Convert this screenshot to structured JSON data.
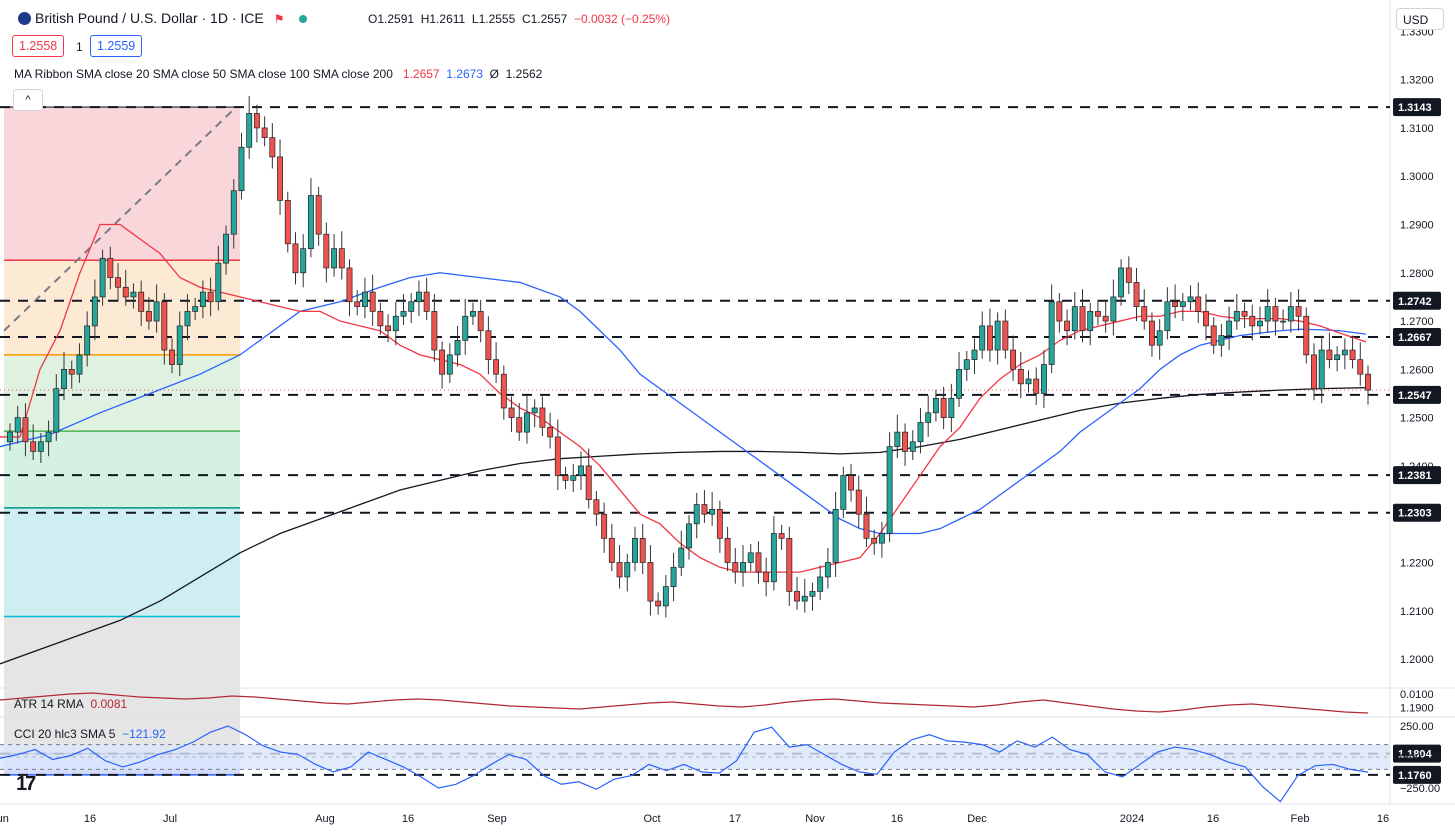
{
  "header": {
    "title": "British Pound / U.S. Dollar · 1D · ICE",
    "open_label": "O",
    "open": "1.2591",
    "high_label": "H",
    "high": "1.2611",
    "low_label": "L",
    "low": "1.2555",
    "close_label": "C",
    "close": "1.2557",
    "change": "−0.0032 (−0.25%)",
    "bid": "1.2558",
    "quantity": "1",
    "ask": "1.2559",
    "currency": "USD",
    "collapse_glyph": "^"
  },
  "ma_ribbon": {
    "label": "MA Ribbon SMA close 20 SMA close 50 SMA close 100 SMA close 200",
    "v1": "1.2657",
    "v2": "1.2673",
    "v3": "Ø",
    "v4": "1.2562"
  },
  "atr": {
    "label": "ATR 14 RMA",
    "value": "0.0081"
  },
  "cci": {
    "label": "CCI 20 hlc3 SMA 5",
    "value": "−121.92"
  },
  "logo_text": "17",
  "colors": {
    "up": "#26a69a",
    "down": "#ef5350",
    "sma20": "#f23645",
    "sma50": "#2962ff",
    "sma200": "#131722",
    "atr": "#b22833",
    "cci": "#2962ff"
  },
  "chart_data": {
    "type": "candlestick",
    "ylim": [
      1.194,
      1.3365
    ],
    "price_ticks": [
      "1.3300",
      "1.3200",
      "1.3100",
      "1.3000",
      "1.2900",
      "1.2800",
      "1.2700",
      "1.2600",
      "1.2500",
      "1.2400",
      "1.2300",
      "1.2200",
      "1.2100",
      "1.2000",
      "1.1900"
    ],
    "x_ticks": [
      "Jun",
      "16",
      "Jul",
      "Aug",
      "16",
      "Sep",
      "Oct",
      "17",
      "Nov",
      "16",
      "Dec",
      "2024",
      "16",
      "Feb",
      "16"
    ],
    "levels": [
      {
        "label": "1.3143",
        "value": 1.3143
      },
      {
        "label": "1.2742",
        "value": 1.2742
      },
      {
        "label": "1.2667",
        "value": 1.2667
      },
      {
        "label": "1.2547",
        "value": 1.2547
      },
      {
        "label": "1.2381",
        "value": 1.2381
      },
      {
        "label": "1.2303",
        "value": 1.2303
      },
      {
        "label": "1.1804",
        "value": 1.1804
      },
      {
        "label": "1.1760",
        "value": 1.176
      }
    ],
    "last_close": 1.2557,
    "fib_levels": [
      1.3143,
      1.2826,
      1.263,
      1.2472,
      1.2313,
      1.2088,
      1.1804
    ],
    "fib_low": 1.176,
    "closes": [
      1.247,
      1.25,
      1.245,
      1.243,
      1.245,
      1.247,
      1.256,
      1.26,
      1.259,
      1.263,
      1.269,
      1.275,
      1.283,
      1.279,
      1.277,
      1.275,
      1.276,
      1.272,
      1.27,
      1.274,
      1.264,
      1.261,
      1.269,
      1.272,
      1.273,
      1.276,
      1.274,
      1.282,
      1.288,
      1.297,
      1.306,
      1.313,
      1.31,
      1.308,
      1.304,
      1.295,
      1.286,
      1.28,
      1.285,
      1.296,
      1.288,
      1.281,
      1.285,
      1.281,
      1.274,
      1.273,
      1.276,
      1.272,
      1.269,
      1.268,
      1.271,
      1.272,
      1.274,
      1.276,
      1.272,
      1.264,
      1.259,
      1.263,
      1.266,
      1.271,
      1.272,
      1.268,
      1.262,
      1.259,
      1.252,
      1.25,
      1.247,
      1.251,
      1.252,
      1.248,
      1.246,
      1.238,
      1.237,
      1.238,
      1.24,
      1.233,
      1.23,
      1.225,
      1.22,
      1.217,
      1.22,
      1.225,
      1.22,
      1.212,
      1.211,
      1.215,
      1.219,
      1.223,
      1.228,
      1.232,
      1.23,
      1.231,
      1.225,
      1.22,
      1.218,
      1.22,
      1.222,
      1.218,
      1.216,
      1.226,
      1.225,
      1.214,
      1.212,
      1.213,
      1.214,
      1.217,
      1.22,
      1.231,
      1.238,
      1.235,
      1.23,
      1.225,
      1.224,
      1.226,
      1.244,
      1.247,
      1.243,
      1.245,
      1.249,
      1.251,
      1.254,
      1.25,
      1.254,
      1.26,
      1.262,
      1.264,
      1.269,
      1.264,
      1.27,
      1.264,
      1.26,
      1.257,
      1.258,
      1.255,
      1.261,
      1.274,
      1.27,
      1.268,
      1.273,
      1.268,
      1.272,
      1.271,
      1.27,
      1.275,
      1.281,
      1.278,
      1.273,
      1.27,
      1.265,
      1.268,
      1.274,
      1.273,
      1.274,
      1.275,
      1.272,
      1.269,
      1.265,
      1.267,
      1.27,
      1.272,
      1.271,
      1.269,
      1.27,
      1.273,
      1.27,
      1.27,
      1.273,
      1.271,
      1.263,
      1.256,
      1.264,
      1.262,
      1.263,
      1.264,
      1.262,
      1.259,
      1.2557
    ],
    "sma20": [
      [
        0,
        1.246
      ],
      [
        20,
        1.246
      ],
      [
        40,
        1.26
      ],
      [
        60,
        1.268
      ],
      [
        80,
        1.28
      ],
      [
        100,
        1.29
      ],
      [
        120,
        1.29
      ],
      [
        140,
        1.287
      ],
      [
        160,
        1.284
      ],
      [
        180,
        1.279
      ],
      [
        200,
        1.277
      ],
      [
        220,
        1.276
      ],
      [
        240,
        1.275
      ],
      [
        260,
        1.274
      ],
      [
        280,
        1.273
      ],
      [
        300,
        1.272
      ],
      [
        320,
        1.272
      ],
      [
        340,
        1.27
      ],
      [
        360,
        1.269
      ],
      [
        380,
        1.268
      ],
      [
        400,
        1.265
      ],
      [
        420,
        1.263
      ],
      [
        440,
        1.262
      ],
      [
        460,
        1.261
      ],
      [
        480,
        1.259
      ],
      [
        500,
        1.255
      ],
      [
        520,
        1.252
      ],
      [
        540,
        1.25
      ],
      [
        560,
        1.247
      ],
      [
        580,
        1.244
      ],
      [
        600,
        1.24
      ],
      [
        620,
        1.235
      ],
      [
        640,
        1.23
      ],
      [
        660,
        1.228
      ],
      [
        680,
        1.224
      ],
      [
        700,
        1.221
      ],
      [
        720,
        1.219
      ],
      [
        740,
        1.218
      ],
      [
        760,
        1.218
      ],
      [
        780,
        1.218
      ],
      [
        800,
        1.218
      ],
      [
        820,
        1.219
      ],
      [
        840,
        1.22
      ],
      [
        860,
        1.221
      ],
      [
        880,
        1.226
      ],
      [
        900,
        1.232
      ],
      [
        920,
        1.238
      ],
      [
        940,
        1.244
      ],
      [
        960,
        1.248
      ],
      [
        980,
        1.254
      ],
      [
        1000,
        1.258
      ],
      [
        1020,
        1.261
      ],
      [
        1040,
        1.263
      ],
      [
        1060,
        1.266
      ],
      [
        1080,
        1.268
      ],
      [
        1100,
        1.269
      ],
      [
        1120,
        1.27
      ],
      [
        1140,
        1.271
      ],
      [
        1160,
        1.271
      ],
      [
        1180,
        1.272
      ],
      [
        1200,
        1.272
      ],
      [
        1220,
        1.271
      ],
      [
        1240,
        1.2705
      ],
      [
        1260,
        1.2705
      ],
      [
        1280,
        1.2705
      ],
      [
        1300,
        1.27
      ],
      [
        1320,
        1.269
      ],
      [
        1340,
        1.2675
      ],
      [
        1366,
        1.2657
      ]
    ],
    "sma50": [
      [
        0,
        1.244
      ],
      [
        50,
        1.2465
      ],
      [
        100,
        1.251
      ],
      [
        150,
        1.255
      ],
      [
        200,
        1.259
      ],
      [
        240,
        1.263
      ],
      [
        260,
        1.266
      ],
      [
        300,
        1.272
      ],
      [
        340,
        1.274
      ],
      [
        380,
        1.277
      ],
      [
        410,
        1.279
      ],
      [
        440,
        1.28
      ],
      [
        480,
        1.279
      ],
      [
        520,
        1.278
      ],
      [
        560,
        1.275
      ],
      [
        580,
        1.272
      ],
      [
        600,
        1.268
      ],
      [
        620,
        1.264
      ],
      [
        640,
        1.259
      ],
      [
        660,
        1.256
      ],
      [
        680,
        1.253
      ],
      [
        700,
        1.25
      ],
      [
        720,
        1.247
      ],
      [
        740,
        1.244
      ],
      [
        760,
        1.241
      ],
      [
        780,
        1.238
      ],
      [
        800,
        1.235
      ],
      [
        820,
        1.232
      ],
      [
        840,
        1.229
      ],
      [
        860,
        1.227
      ],
      [
        880,
        1.226
      ],
      [
        900,
        1.226
      ],
      [
        920,
        1.226
      ],
      [
        940,
        1.227
      ],
      [
        960,
        1.229
      ],
      [
        980,
        1.231
      ],
      [
        1000,
        1.234
      ],
      [
        1020,
        1.237
      ],
      [
        1040,
        1.24
      ],
      [
        1060,
        1.243
      ],
      [
        1080,
        1.247
      ],
      [
        1100,
        1.25
      ],
      [
        1120,
        1.253
      ],
      [
        1140,
        1.256
      ],
      [
        1160,
        1.26
      ],
      [
        1180,
        1.263
      ],
      [
        1200,
        1.265
      ],
      [
        1220,
        1.266
      ],
      [
        1240,
        1.267
      ],
      [
        1260,
        1.2675
      ],
      [
        1280,
        1.268
      ],
      [
        1300,
        1.2683
      ],
      [
        1320,
        1.2682
      ],
      [
        1340,
        1.268
      ],
      [
        1366,
        1.2673
      ]
    ],
    "sma200": [
      [
        0,
        1.199
      ],
      [
        40,
        1.202
      ],
      [
        80,
        1.205
      ],
      [
        120,
        1.208
      ],
      [
        160,
        1.212
      ],
      [
        200,
        1.217
      ],
      [
        240,
        1.222
      ],
      [
        280,
        1.226
      ],
      [
        320,
        1.229
      ],
      [
        360,
        1.232
      ],
      [
        400,
        1.235
      ],
      [
        440,
        1.237
      ],
      [
        480,
        1.239
      ],
      [
        520,
        1.2405
      ],
      [
        560,
        1.2415
      ],
      [
        600,
        1.242
      ],
      [
        640,
        1.2425
      ],
      [
        680,
        1.2428
      ],
      [
        720,
        1.243
      ],
      [
        760,
        1.243
      ],
      [
        800,
        1.2428
      ],
      [
        840,
        1.2425
      ],
      [
        880,
        1.2428
      ],
      [
        920,
        1.244
      ],
      [
        960,
        1.2455
      ],
      [
        1000,
        1.2475
      ],
      [
        1040,
        1.2495
      ],
      [
        1080,
        1.2515
      ],
      [
        1120,
        1.253
      ],
      [
        1160,
        1.254
      ],
      [
        1200,
        1.2548
      ],
      [
        1240,
        1.2553
      ],
      [
        1280,
        1.2557
      ],
      [
        1320,
        1.256
      ],
      [
        1366,
        1.2562
      ]
    ],
    "atr_ticks": [
      "0.0100"
    ],
    "atr_series": [
      0.0094,
      0.0096,
      0.0098,
      0.01,
      0.0101,
      0.0099,
      0.0097,
      0.0096,
      0.0095,
      0.0096,
      0.0098,
      0.0097,
      0.0095,
      0.0093,
      0.0091,
      0.009,
      0.0092,
      0.0094,
      0.0095,
      0.0094,
      0.0092,
      0.009,
      0.0088,
      0.0087,
      0.0086,
      0.0085,
      0.0087,
      0.0089,
      0.0091,
      0.0092,
      0.009,
      0.0088,
      0.0087,
      0.0089,
      0.0092,
      0.0094,
      0.0095,
      0.0093,
      0.0091,
      0.009,
      0.0089,
      0.0088,
      0.0087,
      0.0089,
      0.0092,
      0.0094,
      0.0091,
      0.0088,
      0.0085,
      0.0083,
      0.0082,
      0.0084,
      0.0087,
      0.0089,
      0.009,
      0.0088,
      0.0086,
      0.0084,
      0.0082,
      0.0081
    ],
    "cci_ticks": [
      "250.00",
      "0.00",
      "−250.00"
    ],
    "cci_band": [
      100,
      -100
    ],
    "cci_series": [
      -10,
      20,
      60,
      -20,
      10,
      70,
      -30,
      -80,
      -40,
      20,
      60,
      120,
      200,
      250,
      180,
      90,
      40,
      20,
      -60,
      -120,
      -80,
      40,
      -20,
      -80,
      -160,
      -250,
      -220,
      -150,
      -60,
      20,
      -20,
      -150,
      -220,
      -200,
      -260,
      -180,
      -150,
      -60,
      -110,
      -60,
      -120,
      -130,
      -30,
      200,
      240,
      80,
      100,
      20,
      -60,
      -120,
      -140,
      40,
      140,
      180,
      130,
      120,
      100,
      40,
      130,
      80,
      160,
      60,
      20,
      -120,
      -160,
      -60,
      40,
      80,
      60,
      20,
      -40,
      -80,
      -240,
      -360,
      -150,
      -70,
      -60,
      -100,
      -122
    ]
  }
}
